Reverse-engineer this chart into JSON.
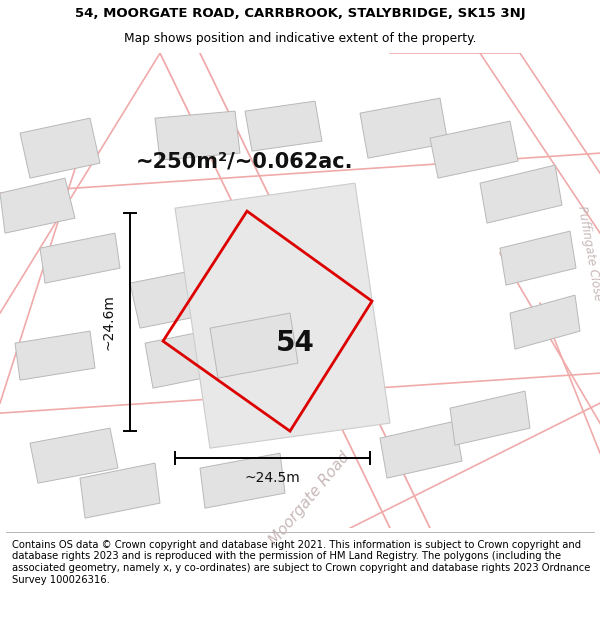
{
  "title_line1": "54, MOORGATE ROAD, CARRBROOK, STALYBRIDGE, SK15 3NJ",
  "title_line2": "Map shows position and indicative extent of the property.",
  "footer_text": "Contains OS data © Crown copyright and database right 2021. This information is subject to Crown copyright and database rights 2023 and is reproduced with the permission of HM Land Registry. The polygons (including the associated geometry, namely x, y co-ordinates) are subject to Crown copyright and database rights 2023 Ordnance Survey 100026316.",
  "area_label": "~250m²/~0.062ac.",
  "width_label": "~24.5m",
  "height_label": "~24.6m",
  "number_label": "54",
  "map_bg": "#f5f4f4",
  "building_fill": "#e2e2e2",
  "building_stroke": "#b8b8b8",
  "road_color": "#f0aaaa",
  "red_polygon_color": "#dd0000",
  "annotation_color": "#111111",
  "road_label_color": "#c8b8b8",
  "road_label2_color": "#c8b8b8",
  "title_fontsize": 9.5,
  "subtitle_fontsize": 8.8,
  "footer_fontsize": 7.2,
  "area_fontsize": 15,
  "number_fontsize": 20,
  "dim_fontsize": 10,
  "road_label_fontsize": 11
}
